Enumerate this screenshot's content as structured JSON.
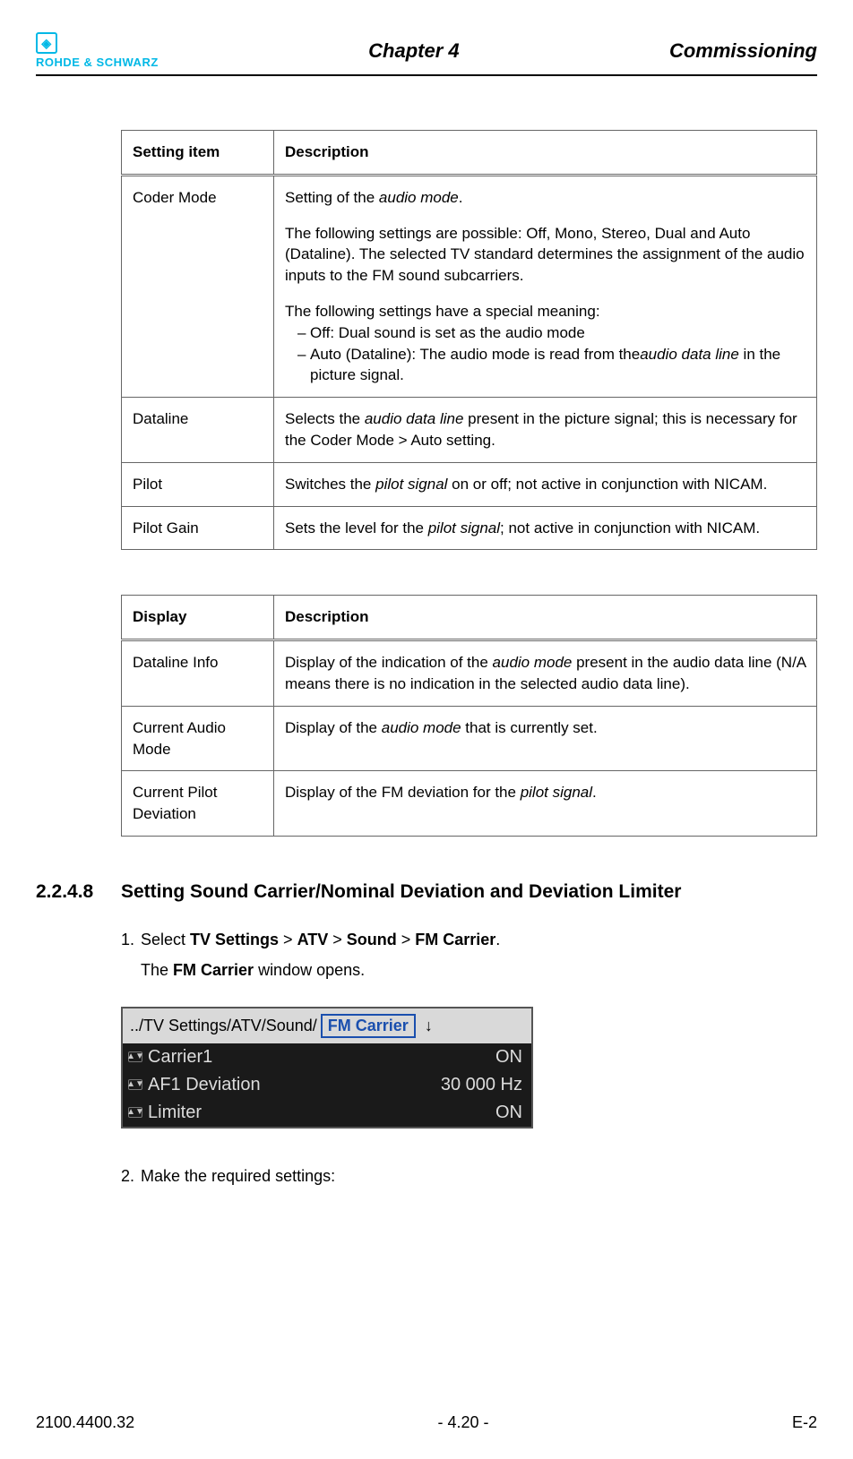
{
  "header": {
    "logo_text": "ROHDE & SCHWARZ",
    "chapter": "Chapter 4",
    "section": "Commissioning"
  },
  "table1": {
    "cols": [
      "Setting item",
      "Description"
    ],
    "rows": [
      {
        "item": "Coder Mode",
        "desc": {
          "intro1_a": "Setting of the ",
          "intro1_i": "audio mode",
          "intro1_b": ".",
          "p2": "The following settings are possible: Off, Mono, Stereo, Dual and Auto (Dataline). The selected TV standard determines the assignment of the audio inputs to the FM sound subcarriers.",
          "p3": "The following settings have a special meaning:",
          "li1": "Off: Dual sound is set as the audio mode",
          "li2_a": "Auto (Dataline): The audio mode is read from the",
          "li2_i": "audio data line",
          "li2_b": " in the picture signal."
        }
      },
      {
        "item": "Dataline",
        "desc": {
          "a": "Selects the ",
          "i": "audio data line",
          "b": " present in the picture signal; this is necessary for the Coder Mode > Auto setting."
        }
      },
      {
        "item": "Pilot",
        "desc": {
          "a": "Switches the ",
          "i": "pilot signal",
          "b": " on or off; not active in conjunction with NICAM."
        }
      },
      {
        "item": "Pilot Gain",
        "desc": {
          "a": "Sets the level for the ",
          "i": "pilot signal",
          "b": "; not active in conjunction with NICAM."
        }
      }
    ]
  },
  "table2": {
    "cols": [
      "Display",
      "Description"
    ],
    "rows": [
      {
        "item": "Dataline Info",
        "desc": {
          "a": "Display of the indication of the ",
          "i": "audio mode",
          "b": " present in the audio data line (N/A means there is no indication in the selected audio data line)."
        }
      },
      {
        "item": "Current Audio Mode",
        "desc": {
          "a": "Display of the ",
          "i": "audio mode",
          "b": " that is currently set."
        }
      },
      {
        "item": "Current Pilot Deviation",
        "desc": {
          "a": "Display of the FM deviation for the ",
          "i": "pilot signal",
          "b": "."
        }
      }
    ]
  },
  "section": {
    "number": "2.2.4.8",
    "title": "Setting Sound Carrier/Nominal Deviation and Deviation Limiter"
  },
  "steps": {
    "s1_a": "Select ",
    "s1_nav1": "TV Settings",
    "s1_gt1": " > ",
    "s1_nav2": "ATV",
    "s1_gt2": " > ",
    "s1_nav3": "Sound",
    "s1_gt3": " > ",
    "s1_nav4": "FM Carrier",
    "s1_end": ".",
    "s1_result_a": "The ",
    "s1_result_b": "FM Carrier",
    "s1_result_c": " window opens.",
    "s2": "Make the required settings:"
  },
  "device": {
    "breadcrumb_pre": "../TV Settings/ATV/Sound/",
    "breadcrumb_box": "FM Carrier",
    "rows": [
      {
        "label": "Carrier1",
        "value": "ON"
      },
      {
        "label": "AF1 Deviation",
        "value": "30 000 Hz"
      },
      {
        "label": "Limiter",
        "value": "ON"
      }
    ]
  },
  "footer": {
    "left": "2100.4400.32",
    "center": "- 4.20 -",
    "right": "E-2"
  }
}
